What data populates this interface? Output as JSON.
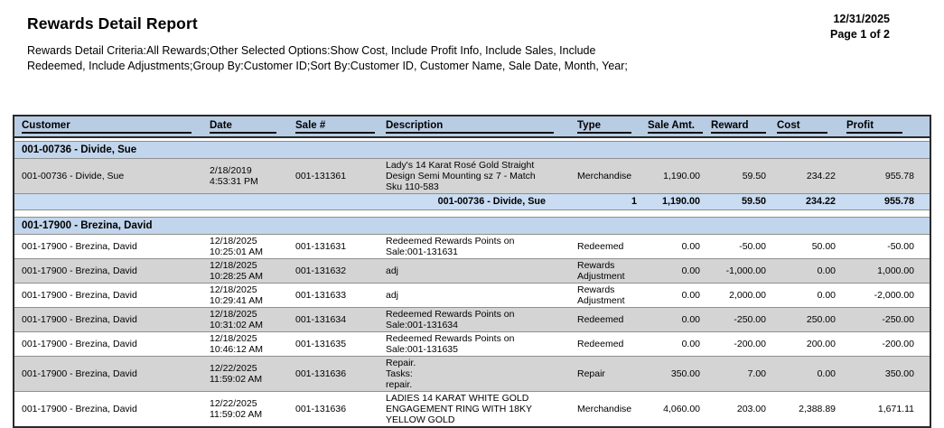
{
  "header": {
    "title": "Rewards Detail Report",
    "print_date": "12/31/2025",
    "page_label": "Page 1 of 2",
    "criteria": "Rewards Detail Criteria:All Rewards;Other Selected Options:Show Cost, Include Profit Info, Include Sales, Include\nRedeemed, Include Adjustments;Group By:Customer ID;Sort By:Customer ID, Customer Name, Sale Date, Month, Year;"
  },
  "colors": {
    "header_band": "#b8cce4",
    "group_row": "#c1d5ec",
    "subtotal_row": "#c9dcf2",
    "row_gray": "#d4d4d4"
  },
  "table": {
    "columns": [
      {
        "id": "customer",
        "label": "Customer"
      },
      {
        "id": "date",
        "label": "Date"
      },
      {
        "id": "sale-number",
        "label": "Sale #"
      },
      {
        "id": "description",
        "label": "Description"
      },
      {
        "id": "type",
        "label": "Type"
      },
      {
        "id": "sale-amt",
        "label": "Sale Amt."
      },
      {
        "id": "reward",
        "label": "Reward"
      },
      {
        "id": "cost",
        "label": "Cost"
      },
      {
        "id": "profit",
        "label": "Profit"
      }
    ],
    "groups": [
      {
        "header": "001-00736 - Divide, Sue",
        "rows": [
          {
            "customer": "001-00736 - Divide, Sue",
            "date": "2/18/2019\n4:53:31 PM",
            "sale_number": "001-131361",
            "description": "Lady's 14 Karat Rosé Gold Straight\nDesign Semi Mounting sz 7 - Match\nSku 110-583",
            "type": "Merchandise",
            "sale_amt": "1,190.00",
            "reward": "59.50",
            "cost": "234.22",
            "profit": "955.78",
            "shade": "gray"
          }
        ],
        "subtotal": {
          "label": "001-00736 - Divide, Sue",
          "count": "1",
          "sale_amt": "1,190.00",
          "reward": "59.50",
          "cost": "234.22",
          "profit": "955.78"
        }
      },
      {
        "header": "001-17900 - Brezina, David",
        "rows": [
          {
            "customer": "001-17900 - Brezina, David",
            "date": "12/18/2025\n10:25:01 AM",
            "sale_number": "001-131631",
            "description": "Redeemed Rewards Points on\nSale:001-131631",
            "type": "Redeemed",
            "sale_amt": "0.00",
            "reward": "-50.00",
            "cost": "50.00",
            "profit": "-50.00",
            "shade": "white"
          },
          {
            "customer": "001-17900 - Brezina, David",
            "date": "12/18/2025\n10:28:25 AM",
            "sale_number": "001-131632",
            "description": "adj",
            "type": "Rewards Adjustment",
            "sale_amt": "0.00",
            "reward": "-1,000.00",
            "cost": "0.00",
            "profit": "1,000.00",
            "shade": "gray"
          },
          {
            "customer": "001-17900 - Brezina, David",
            "date": "12/18/2025\n10:29:41 AM",
            "sale_number": "001-131633",
            "description": "adj",
            "type": "Rewards Adjustment",
            "sale_amt": "0.00",
            "reward": "2,000.00",
            "cost": "0.00",
            "profit": "-2,000.00",
            "shade": "white"
          },
          {
            "customer": "001-17900 - Brezina, David",
            "date": "12/18/2025\n10:31:02 AM",
            "sale_number": "001-131634",
            "description": "Redeemed Rewards Points on\nSale:001-131634",
            "type": "Redeemed",
            "sale_amt": "0.00",
            "reward": "-250.00",
            "cost": "250.00",
            "profit": "-250.00",
            "shade": "gray"
          },
          {
            "customer": "001-17900 - Brezina, David",
            "date": "12/18/2025\n10:46:12 AM",
            "sale_number": "001-131635",
            "description": "Redeemed Rewards Points on\nSale:001-131635",
            "type": "Redeemed",
            "sale_amt": "0.00",
            "reward": "-200.00",
            "cost": "200.00",
            "profit": "-200.00",
            "shade": "white"
          },
          {
            "customer": "001-17900 - Brezina, David",
            "date": "12/22/2025\n11:59:02 AM",
            "sale_number": "001-131636",
            "description": "Repair.\nTasks:\nrepair.",
            "type": "Repair",
            "sale_amt": "350.00",
            "reward": "7.00",
            "cost": "0.00",
            "profit": "350.00",
            "shade": "gray"
          },
          {
            "customer": "001-17900 - Brezina, David",
            "date": "12/22/2025\n11:59:02 AM",
            "sale_number": "001-131636",
            "description": "LADIES 14 KARAT WHITE GOLD\nENGAGEMENT RING WITH 18KY\nYELLOW GOLD",
            "type": "Merchandise",
            "sale_amt": "4,060.00",
            "reward": "203.00",
            "cost": "2,388.89",
            "profit": "1,671.11",
            "shade": "white"
          }
        ]
      }
    ]
  }
}
